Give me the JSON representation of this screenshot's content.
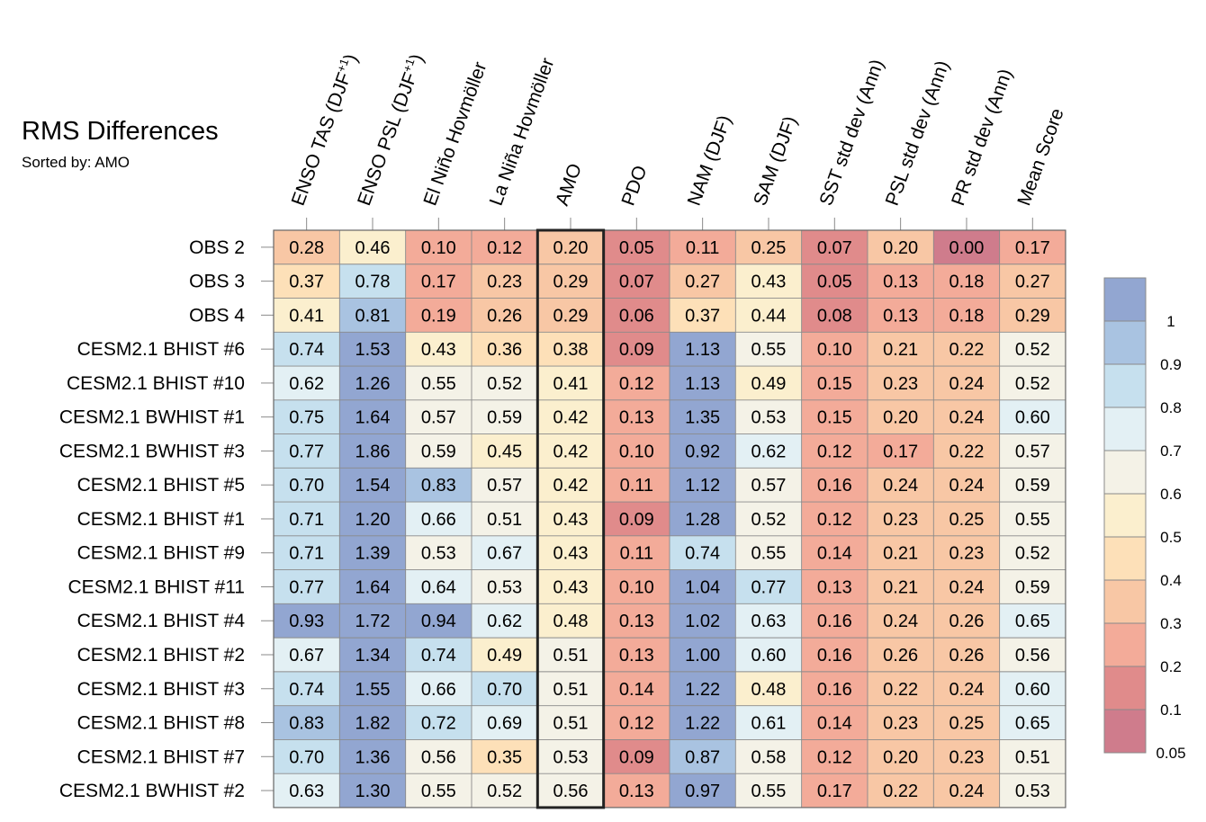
{
  "chart_data": {
    "type": "heatmap",
    "title": "RMS Differences",
    "subtitle": "Sorted by: AMO",
    "sorted_by": "AMO",
    "columns": [
      {
        "name": "ENSO TAS (DJF",
        "superscript": "+1",
        "suffix": ")"
      },
      {
        "name": "ENSO PSL (DJF",
        "superscript": "+1",
        "suffix": ")"
      },
      {
        "name": "El Niño Hovmöller"
      },
      {
        "name": "La Niña Hovmöller"
      },
      {
        "name": "AMO"
      },
      {
        "name": "PDO"
      },
      {
        "name": "NAM (DJF)"
      },
      {
        "name": "SAM (DJF)"
      },
      {
        "name": "SST std dev (Ann)"
      },
      {
        "name": "PSL std dev (Ann)"
      },
      {
        "name": "PR std dev (Ann)"
      },
      {
        "name": "Mean Score"
      }
    ],
    "rows": [
      {
        "label": "OBS 2",
        "values": [
          0.28,
          0.46,
          0.1,
          0.12,
          0.2,
          0.05,
          0.11,
          0.25,
          0.07,
          0.2,
          0.0,
          0.17
        ]
      },
      {
        "label": "OBS 3",
        "values": [
          0.37,
          0.78,
          0.17,
          0.23,
          0.29,
          0.07,
          0.27,
          0.43,
          0.05,
          0.13,
          0.18,
          0.27
        ]
      },
      {
        "label": "OBS 4",
        "values": [
          0.41,
          0.81,
          0.19,
          0.26,
          0.29,
          0.06,
          0.37,
          0.44,
          0.08,
          0.13,
          0.18,
          0.29
        ]
      },
      {
        "label": "CESM2.1 BHIST #6",
        "values": [
          0.74,
          1.53,
          0.43,
          0.36,
          0.38,
          0.09,
          1.13,
          0.55,
          0.1,
          0.21,
          0.22,
          0.52
        ]
      },
      {
        "label": "CESM2.1 BHIST #10",
        "values": [
          0.62,
          1.26,
          0.55,
          0.52,
          0.41,
          0.12,
          1.13,
          0.49,
          0.15,
          0.23,
          0.24,
          0.52
        ]
      },
      {
        "label": "CESM2.1 BWHIST #1",
        "values": [
          0.75,
          1.64,
          0.57,
          0.59,
          0.42,
          0.13,
          1.35,
          0.53,
          0.15,
          0.2,
          0.24,
          0.6
        ]
      },
      {
        "label": "CESM2.1 BWHIST #3",
        "values": [
          0.77,
          1.86,
          0.59,
          0.45,
          0.42,
          0.1,
          0.92,
          0.62,
          0.12,
          0.17,
          0.22,
          0.57
        ]
      },
      {
        "label": "CESM2.1 BHIST #5",
        "values": [
          0.7,
          1.54,
          0.83,
          0.57,
          0.42,
          0.11,
          1.12,
          0.57,
          0.16,
          0.24,
          0.24,
          0.59
        ]
      },
      {
        "label": "CESM2.1 BHIST #1",
        "values": [
          0.71,
          1.2,
          0.66,
          0.51,
          0.43,
          0.09,
          1.28,
          0.52,
          0.12,
          0.23,
          0.25,
          0.55
        ]
      },
      {
        "label": "CESM2.1 BHIST #9",
        "values": [
          0.71,
          1.39,
          0.53,
          0.67,
          0.43,
          0.11,
          0.74,
          0.55,
          0.14,
          0.21,
          0.23,
          0.52
        ]
      },
      {
        "label": "CESM2.1 BHIST #11",
        "values": [
          0.77,
          1.64,
          0.64,
          0.53,
          0.43,
          0.1,
          1.04,
          0.77,
          0.13,
          0.21,
          0.24,
          0.59
        ]
      },
      {
        "label": "CESM2.1 BHIST #4",
        "values": [
          0.93,
          1.72,
          0.94,
          0.62,
          0.48,
          0.13,
          1.02,
          0.63,
          0.16,
          0.24,
          0.26,
          0.65
        ]
      },
      {
        "label": "CESM2.1 BHIST #2",
        "values": [
          0.67,
          1.34,
          0.74,
          0.49,
          0.51,
          0.13,
          1.0,
          0.6,
          0.16,
          0.26,
          0.26,
          0.56
        ]
      },
      {
        "label": "CESM2.1 BHIST #3",
        "values": [
          0.74,
          1.55,
          0.66,
          0.7,
          0.51,
          0.14,
          1.22,
          0.48,
          0.16,
          0.22,
          0.24,
          0.6
        ]
      },
      {
        "label": "CESM2.1 BHIST #8",
        "values": [
          0.83,
          1.82,
          0.72,
          0.69,
          0.51,
          0.12,
          1.22,
          0.61,
          0.14,
          0.23,
          0.25,
          0.65
        ]
      },
      {
        "label": "CESM2.1 BHIST #7",
        "values": [
          0.7,
          1.36,
          0.56,
          0.35,
          0.53,
          0.09,
          0.87,
          0.58,
          0.12,
          0.2,
          0.23,
          0.51
        ]
      },
      {
        "label": "CESM2.1 BWHIST #2",
        "values": [
          0.63,
          1.3,
          0.55,
          0.52,
          0.56,
          0.13,
          0.97,
          0.55,
          0.17,
          0.22,
          0.24,
          0.53
        ]
      }
    ],
    "highlight_column": "AMO",
    "colorbar": {
      "boundaries": [
        0.05,
        0.1,
        0.2,
        0.3,
        0.4,
        0.5,
        0.6,
        0.7,
        0.8,
        0.9,
        1
      ],
      "labels": [
        "1",
        "0.9",
        "0.8",
        "0.7",
        "0.6",
        "0.5",
        "0.4",
        "0.3",
        "0.2",
        "0.1",
        "0.05"
      ],
      "colors_low_to_high": [
        "#cf7c8c",
        "#e08b8b",
        "#f3ab99",
        "#f8c7a5",
        "#fde0b8",
        "#fbefce",
        "#f4f2e7",
        "#e3f0f4",
        "#c6e0ee",
        "#a9c3e1",
        "#92a6d1"
      ]
    }
  }
}
